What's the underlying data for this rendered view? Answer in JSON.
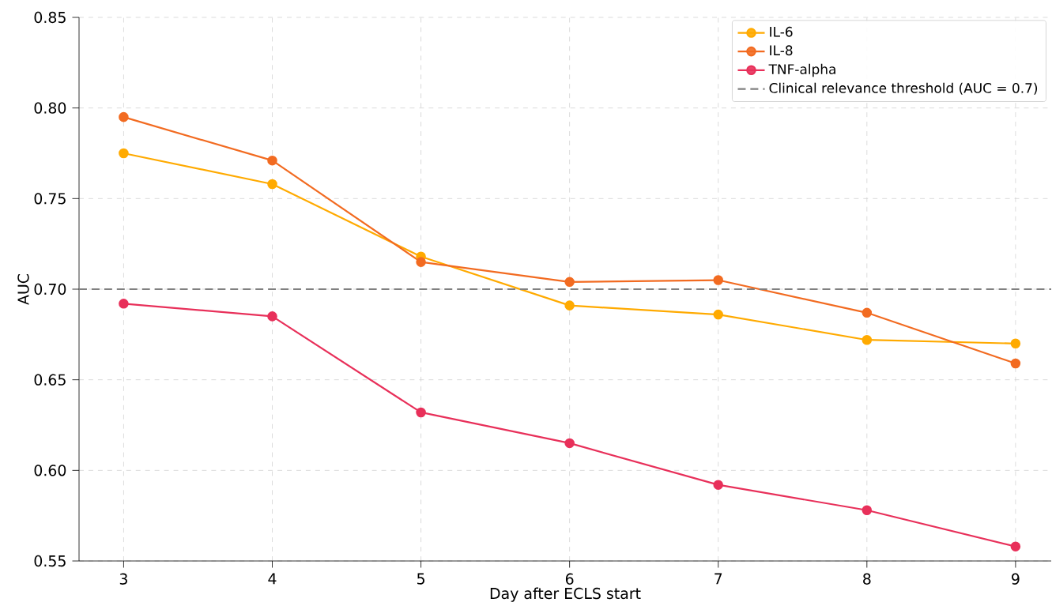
{
  "chart_data": {
    "type": "line",
    "xlabel": "Day after ECLS start",
    "ylabel": "AUC",
    "x": [
      3,
      4,
      5,
      6,
      7,
      8,
      9
    ],
    "series": [
      {
        "name": "IL-6",
        "color": "#ffaa00",
        "values": [
          0.775,
          0.758,
          0.718,
          0.691,
          0.686,
          0.672,
          0.67
        ]
      },
      {
        "name": "IL-8",
        "color": "#f26b21",
        "values": [
          0.795,
          0.771,
          0.715,
          0.704,
          0.705,
          0.687,
          0.659
        ]
      },
      {
        "name": "TNF-alpha",
        "color": "#e8305a",
        "values": [
          0.692,
          0.685,
          0.632,
          0.615,
          0.592,
          0.578,
          0.558
        ]
      }
    ],
    "ref_lines": [
      {
        "axis": "y",
        "value": 0.7,
        "label": "Clinical relevance threshold (AUC = 0.7)",
        "color": "#808080",
        "line_style": "dashed"
      }
    ],
    "xlim": [
      2.7,
      9.24
    ],
    "ylim": [
      0.55,
      0.85
    ],
    "xticks": [
      3,
      4,
      5,
      6,
      7,
      8,
      9
    ],
    "yticks": [
      {
        "value": 0.55,
        "label": "0.55"
      },
      {
        "value": 0.6,
        "label": "0.60"
      },
      {
        "value": 0.65,
        "label": "0.65"
      },
      {
        "value": 0.7,
        "label": "0.70"
      },
      {
        "value": 0.75,
        "label": "0.75"
      },
      {
        "value": 0.8,
        "label": "0.80"
      },
      {
        "value": 0.85,
        "label": "0.85"
      }
    ],
    "grid": true,
    "legend": "top right",
    "marker": "circle",
    "line_style": "solid"
  }
}
